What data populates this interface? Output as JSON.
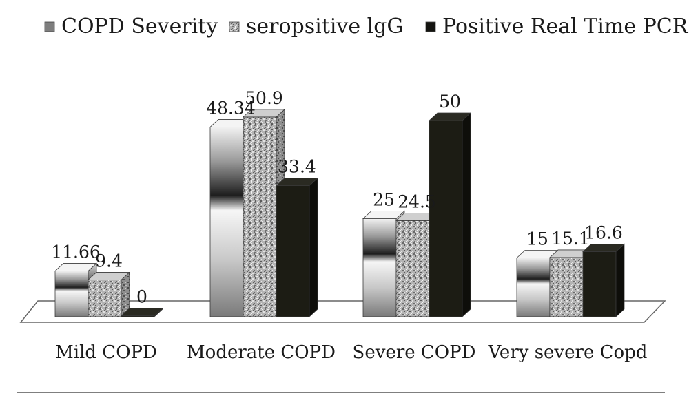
{
  "chart_data": {
    "type": "bar",
    "categories": [
      "Mild COPD",
      "Moderate COPD",
      "Severe COPD",
      "Very severe Copd"
    ],
    "series": [
      {
        "name": "COPD Severity",
        "values": [
          11.66,
          48.34,
          25,
          15
        ],
        "color": "#8a8a8a"
      },
      {
        "name": "seropsitive lgG",
        "values": [
          9.4,
          50.9,
          24.5,
          15.1
        ],
        "color": "#a8a8a8"
      },
      {
        "name": "Positive Real Time PCR",
        "values": [
          0,
          33.4,
          50,
          16.6
        ],
        "color": "#1c1c14"
      }
    ],
    "data_labels": [
      [
        "11.66",
        "48.34",
        "25",
        "15"
      ],
      [
        "9.4",
        "50.9",
        "24.5",
        "15.1"
      ],
      [
        "0",
        "33.4",
        "50",
        "16.6"
      ]
    ],
    "ylim": [
      0,
      60
    ],
    "grid": false,
    "legend_position": "top"
  }
}
